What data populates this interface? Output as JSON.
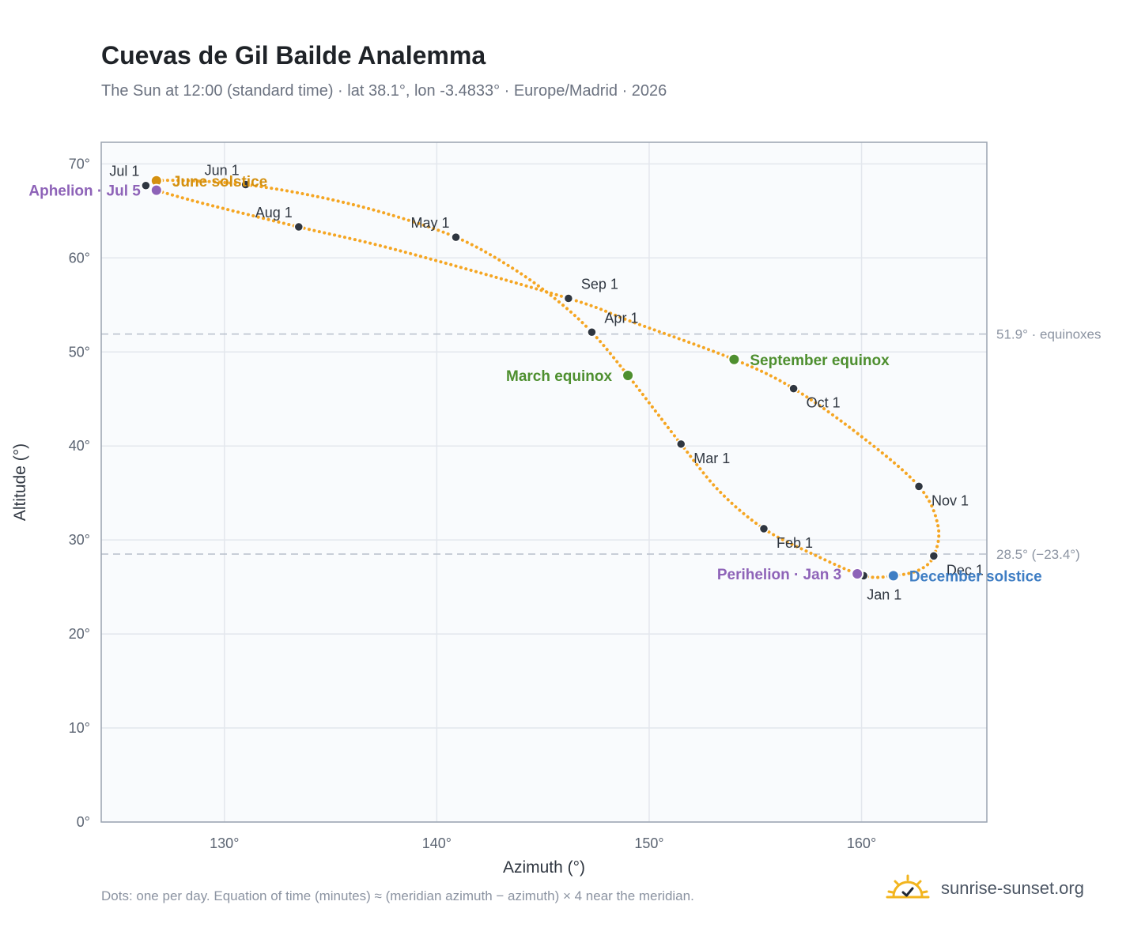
{
  "title": "Cuevas de Gil Bailde Analemma",
  "subtitle": "The Sun at 12:00 (standard time) · lat 38.1°, lon -3.4833° · Europe/Madrid · 2026",
  "footnote": "Dots: one per day. Equation of time (minutes) ≈ (meridian azimuth − azimuth) × 4 near the meridian.",
  "brand": {
    "name": "sunrise-sunset.org",
    "icon": "sun-check-icon",
    "color": "#f2b51f"
  },
  "chart_data": {
    "type": "scatter",
    "xlabel": "Azimuth (°)",
    "ylabel": "Altitude (°)",
    "xlim": [
      124.2,
      165.9
    ],
    "ylim": [
      0,
      72.3
    ],
    "x_ticks": [
      130,
      140,
      150,
      160
    ],
    "y_ticks": [
      0,
      10,
      20,
      30,
      40,
      50,
      60,
      70
    ],
    "tick_suffix": "°",
    "grid": true,
    "colors": {
      "curve": "#f5a623",
      "month_marker": "#2f3640",
      "solstice_june": "#d4900f",
      "solstice_december": "#3f7ec4",
      "equinox": "#4e8f2f",
      "apsis": "#8e63b8",
      "reference_line": "#b8c0cc",
      "plot_background": "#f9fbfd",
      "plot_border": "#9aa3b0",
      "grid": "#e3e7ed"
    },
    "reference_lines": [
      {
        "y": 51.9,
        "label": "51.9° · equinoxes"
      },
      {
        "y": 28.5,
        "label": "28.5° (−23.4°)"
      }
    ],
    "analemma_path": [
      {
        "date": "Jan 1",
        "az": 160.1,
        "alt": 26.2
      },
      {
        "date": "Jan 16",
        "az": 157.8,
        "alt": 28.4
      },
      {
        "date": "Feb 1",
        "az": 155.4,
        "alt": 31.2
      },
      {
        "date": "Feb 15",
        "az": 153.3,
        "alt": 35.2
      },
      {
        "date": "Mar 1",
        "az": 151.5,
        "alt": 40.2
      },
      {
        "date": "Mar 10",
        "az": 150.3,
        "alt": 43.7
      },
      {
        "date": "Mar 20",
        "az": 149.0,
        "alt": 47.5
      },
      {
        "date": "Apr 1",
        "az": 147.3,
        "alt": 52.1
      },
      {
        "date": "Apr 10",
        "az": 145.6,
        "alt": 55.6
      },
      {
        "date": "Apr 20",
        "az": 143.5,
        "alt": 59.0
      },
      {
        "date": "May 1",
        "az": 140.9,
        "alt": 62.2
      },
      {
        "date": "May 12",
        "az": 137.5,
        "alt": 64.8
      },
      {
        "date": "May 22",
        "az": 134.2,
        "alt": 66.6
      },
      {
        "date": "Jun 1",
        "az": 131.0,
        "alt": 67.8
      },
      {
        "date": "Jun 11",
        "az": 128.5,
        "alt": 68.2
      },
      {
        "date": "Jun 21",
        "az": 126.8,
        "alt": 68.2
      },
      {
        "date": "Jul 1",
        "az": 126.3,
        "alt": 67.7
      },
      {
        "date": "Jul 5",
        "az": 126.8,
        "alt": 67.2
      },
      {
        "date": "Jul 15",
        "az": 129.0,
        "alt": 65.8
      },
      {
        "date": "Aug 1",
        "az": 133.5,
        "alt": 63.3
      },
      {
        "date": "Aug 15",
        "az": 138.2,
        "alt": 60.8
      },
      {
        "date": "Sep 1",
        "az": 146.2,
        "alt": 55.7
      },
      {
        "date": "Sep 11",
        "az": 149.2,
        "alt": 53.2
      },
      {
        "date": "Sep 22",
        "az": 154.0,
        "alt": 49.2
      },
      {
        "date": "Oct 1",
        "az": 156.8,
        "alt": 46.1
      },
      {
        "date": "Oct 15",
        "az": 160.0,
        "alt": 41.0
      },
      {
        "date": "Nov 1",
        "az": 162.7,
        "alt": 35.7
      },
      {
        "date": "Nov 15",
        "az": 163.6,
        "alt": 31.5
      },
      {
        "date": "Dec 1",
        "az": 163.4,
        "alt": 28.3
      },
      {
        "date": "Dec 11",
        "az": 162.7,
        "alt": 26.8
      },
      {
        "date": "Dec 21",
        "az": 161.5,
        "alt": 26.2
      },
      {
        "date": "Jan 1",
        "az": 160.1,
        "alt": 26.2
      }
    ],
    "month_markers": [
      {
        "label": "Jan 1",
        "az": 160.1,
        "alt": 26.2,
        "anchor": "below"
      },
      {
        "label": "Feb 1",
        "az": 155.4,
        "alt": 31.2,
        "anchor": "right"
      },
      {
        "label": "Mar 1",
        "az": 151.5,
        "alt": 40.2,
        "anchor": "right"
      },
      {
        "label": "Apr 1",
        "az": 147.3,
        "alt": 52.1,
        "anchor": "above-right"
      },
      {
        "label": "May 1",
        "az": 140.9,
        "alt": 62.2,
        "anchor": "above-left"
      },
      {
        "label": "Jun 1",
        "az": 131.0,
        "alt": 67.8,
        "anchor": "above-left"
      },
      {
        "label": "Jul 1",
        "az": 126.3,
        "alt": 67.7,
        "anchor": "above-left"
      },
      {
        "label": "Aug 1",
        "az": 133.5,
        "alt": 63.3,
        "anchor": "above-left"
      },
      {
        "label": "Sep 1",
        "az": 146.2,
        "alt": 55.7,
        "anchor": "above-right"
      },
      {
        "label": "Oct 1",
        "az": 156.8,
        "alt": 46.1,
        "anchor": "right"
      },
      {
        "label": "Nov 1",
        "az": 162.7,
        "alt": 35.7,
        "anchor": "right"
      },
      {
        "label": "Dec 1",
        "az": 163.4,
        "alt": 28.3,
        "anchor": "right"
      }
    ],
    "events": [
      {
        "label": "June solstice",
        "az": 126.8,
        "alt": 68.2,
        "color_key": "solstice_june",
        "side": "right"
      },
      {
        "label": "Aphelion · Jul 5",
        "az": 126.8,
        "alt": 67.2,
        "color_key": "apsis",
        "side": "left"
      },
      {
        "label": "March equinox",
        "az": 149.0,
        "alt": 47.5,
        "color_key": "equinox",
        "side": "left"
      },
      {
        "label": "September equinox",
        "az": 154.0,
        "alt": 49.2,
        "color_key": "equinox",
        "side": "right"
      },
      {
        "label": "Perihelion · Jan 3",
        "az": 159.8,
        "alt": 26.4,
        "color_key": "apsis",
        "side": "left"
      },
      {
        "label": "December solstice",
        "az": 161.5,
        "alt": 26.2,
        "color_key": "solstice_december",
        "side": "right"
      }
    ]
  }
}
